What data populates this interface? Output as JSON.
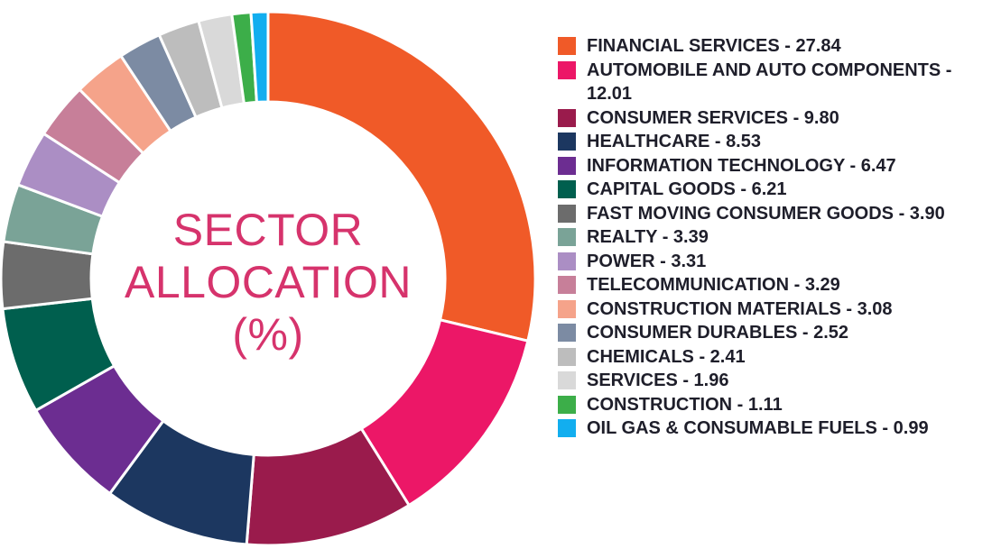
{
  "chart_data": {
    "type": "pie",
    "style": "donut",
    "center_title": [
      "SECTOR",
      "ALLOCATION",
      "(%)"
    ],
    "legend_position": "right",
    "series": [
      {
        "name": "FINANCIAL SERVICES",
        "label": "FINANCIAL SERVICES - 27.84",
        "value": 27.84,
        "color": "#f05a28"
      },
      {
        "name": "AUTOMOBILE AND AUTO COMPONENTS",
        "label": "AUTOMOBILE AND AUTO COMPONENTS - 12.01",
        "value": 12.01,
        "color": "#ec1767"
      },
      {
        "name": "CONSUMER SERVICES",
        "label": "CONSUMER SERVICES - 9.80",
        "value": 9.8,
        "color": "#9a1b4c"
      },
      {
        "name": "HEALTHCARE",
        "label": "HEALTHCARE - 8.53",
        "value": 8.53,
        "color": "#1c3760"
      },
      {
        "name": "INFORMATION TECHNOLOGY",
        "label": "INFORMATION TECHNOLOGY - 6.47",
        "value": 6.47,
        "color": "#6c2d91"
      },
      {
        "name": "CAPITAL GOODS",
        "label": "CAPITAL GOODS - 6.21",
        "value": 6.21,
        "color": "#005f4e"
      },
      {
        "name": "FAST MOVING CONSUMER GOODS",
        "label": "FAST MOVING CONSUMER GOODS - 3.90",
        "value": 3.9,
        "color": "#6c6c6c"
      },
      {
        "name": "REALTY",
        "label": "REALTY - 3.39",
        "value": 3.39,
        "color": "#7aa397"
      },
      {
        "name": "POWER",
        "label": "POWER - 3.31",
        "value": 3.31,
        "color": "#ab8ec4"
      },
      {
        "name": "TELECOMMUNICATION",
        "label": "TELECOMMUNICATION - 3.29",
        "value": 3.29,
        "color": "#c77f99"
      },
      {
        "name": "CONSTRUCTION MATERIALS",
        "label": "CONSTRUCTION MATERIALS - 3.08",
        "value": 3.08,
        "color": "#f5a38a"
      },
      {
        "name": "CONSUMER DURABLES",
        "label": "CONSUMER DURABLES - 2.52",
        "value": 2.52,
        "color": "#7c8ba3"
      },
      {
        "name": "CHEMICALS",
        "label": "CHEMICALS - 2.41",
        "value": 2.41,
        "color": "#bdbdbd"
      },
      {
        "name": "SERVICES",
        "label": "SERVICES - 1.96",
        "value": 1.96,
        "color": "#d9d9d9"
      },
      {
        "name": "CONSTRUCTION",
        "label": "CONSTRUCTION - 1.11",
        "value": 1.11,
        "color": "#3cae49"
      },
      {
        "name": "OIL GAS & CONSUMABLE FUELS",
        "label": "OIL GAS & CONSUMABLE FUELS - 0.99",
        "value": 0.99,
        "color": "#12aeef"
      }
    ]
  }
}
